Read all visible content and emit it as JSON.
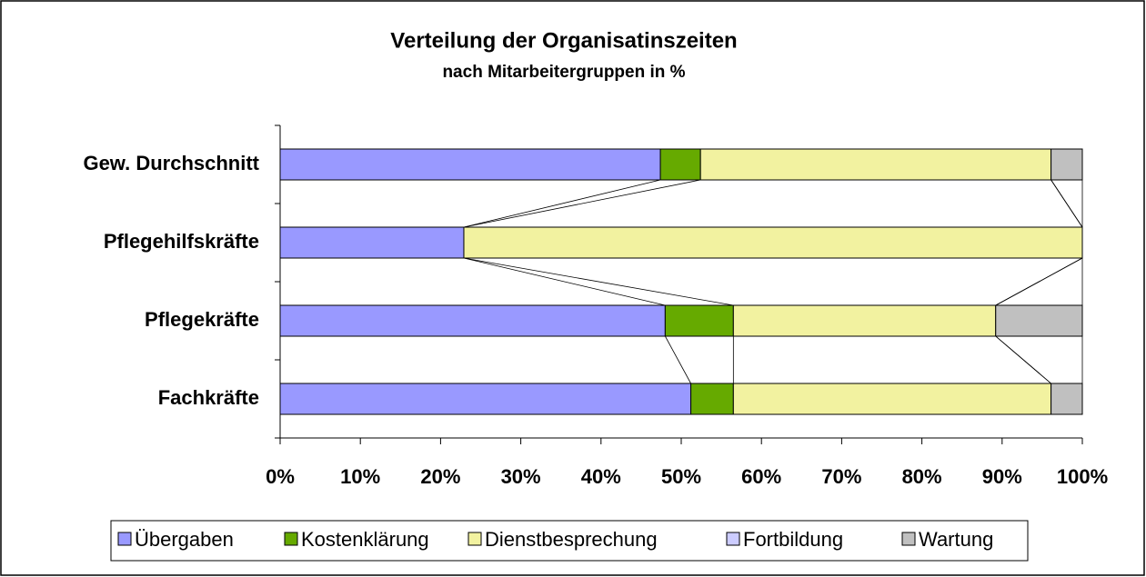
{
  "chart_data": {
    "type": "stacked_barh",
    "title": "Verteilung der Organisatinszeiten",
    "subtitle": "nach Mitarbeitergruppen in %",
    "categories": [
      "Gew. Durchschnitt",
      "Pflegehilfskräfte",
      "Pflegekräfte",
      "Fachkräfte"
    ],
    "series": [
      {
        "name": "Übergaben",
        "color": "#9999ff",
        "values": [
          47.4,
          22.9,
          48.0,
          51.2
        ]
      },
      {
        "name": "Kostenklärung",
        "color": "#66aa00",
        "values": [
          5.0,
          0,
          8.5,
          5.3
        ]
      },
      {
        "name": "Dienstbesprechung",
        "color": "#f2f2a0",
        "values": [
          43.7,
          77.1,
          32.7,
          39.6
        ]
      },
      {
        "name": "Fortbildung",
        "color": "#ccccff",
        "values": [
          0,
          0,
          0,
          0
        ]
      },
      {
        "name": "Wartung",
        "color": "#c0c0c0",
        "values": [
          3.9,
          0,
          10.8,
          3.9
        ]
      }
    ],
    "xlim": [
      0,
      100
    ],
    "xticks": [
      {
        "value": 0,
        "label": "0%"
      },
      {
        "value": 10,
        "label": "10%"
      },
      {
        "value": 20,
        "label": "20%"
      },
      {
        "value": 30,
        "label": "30%"
      },
      {
        "value": 40,
        "label": "40%"
      },
      {
        "value": 50,
        "label": "50%"
      },
      {
        "value": 60,
        "label": "60%"
      },
      {
        "value": 70,
        "label": "70%"
      },
      {
        "value": 80,
        "label": "80%"
      },
      {
        "value": 90,
        "label": "90%"
      },
      {
        "value": 100,
        "label": "100%"
      }
    ],
    "legend": "bottom",
    "series_lines": true
  }
}
